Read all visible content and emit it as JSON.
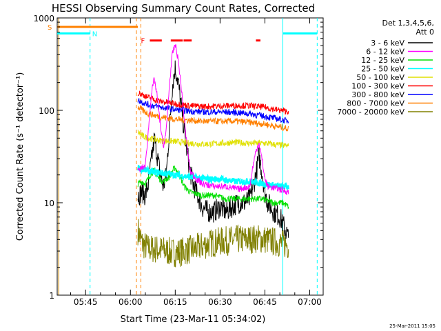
{
  "chart_data": {
    "type": "line",
    "title": "HESSI Observing Summary Count Rates, Corrected",
    "xlabel": "Start Time (23-Mar-11 05:34:02)",
    "ylabel": "Corrected Count Rate (s⁻¹ detector⁻¹)",
    "y_scale": "log",
    "ylim": [
      1,
      1000
    ],
    "xlim_minutes": [
      335.5,
      424.5
    ],
    "x_ticks": [
      {
        "label": "05:45",
        "t": 345
      },
      {
        "label": "06:00",
        "t": 360
      },
      {
        "label": "06:15",
        "t": 375
      },
      {
        "label": "06:30",
        "t": 390
      },
      {
        "label": "06:45",
        "t": 405
      },
      {
        "label": "07:00",
        "t": 420
      }
    ],
    "y_ticks": [
      {
        "label": "1",
        "v": 1
      },
      {
        "label": "10",
        "v": 10
      },
      {
        "label": "100",
        "v": 100
      },
      {
        "label": "1000",
        "v": 1000
      }
    ],
    "legend": {
      "header": [
        "Det 1,3,4,5,6,",
        "Att 0"
      ],
      "position": "right"
    },
    "series": [
      {
        "name": "3 - 6 keV",
        "color": "#000000",
        "points": [
          [
            362.5,
            12
          ],
          [
            364,
            13
          ],
          [
            365,
            12
          ],
          [
            366,
            16
          ],
          [
            367,
            28
          ],
          [
            368,
            50
          ],
          [
            369,
            32
          ],
          [
            370,
            20
          ],
          [
            371,
            15
          ],
          [
            372,
            20
          ],
          [
            373,
            60
          ],
          [
            374,
            180
          ],
          [
            375,
            290
          ],
          [
            376,
            200
          ],
          [
            377,
            110
          ],
          [
            378,
            60
          ],
          [
            379,
            35
          ],
          [
            380,
            22
          ],
          [
            381,
            16
          ],
          [
            382,
            13
          ],
          [
            383,
            11
          ],
          [
            384,
            9
          ],
          [
            386,
            8
          ],
          [
            388,
            8
          ],
          [
            390,
            9
          ],
          [
            392,
            8
          ],
          [
            394,
            9
          ],
          [
            396,
            10
          ],
          [
            398,
            10
          ],
          [
            400,
            11
          ],
          [
            402,
            20
          ],
          [
            403,
            32
          ],
          [
            404,
            22
          ],
          [
            405,
            13
          ],
          [
            406,
            10
          ],
          [
            407,
            9
          ],
          [
            408,
            8
          ],
          [
            410,
            7
          ],
          [
            412,
            5
          ],
          [
            413,
            4
          ]
        ]
      },
      {
        "name": "6 - 12 keV",
        "color": "#ff00ff",
        "points": [
          [
            362.5,
            22
          ],
          [
            364,
            24
          ],
          [
            365,
            25
          ],
          [
            366,
            60
          ],
          [
            367,
            150
          ],
          [
            368,
            220
          ],
          [
            369,
            140
          ],
          [
            370,
            70
          ],
          [
            371,
            40
          ],
          [
            372,
            60
          ],
          [
            373,
            180
          ],
          [
            374,
            400
          ],
          [
            375,
            520
          ],
          [
            376,
            350
          ],
          [
            377,
            180
          ],
          [
            378,
            80
          ],
          [
            379,
            40
          ],
          [
            380,
            22
          ],
          [
            382,
            18
          ],
          [
            384,
            16
          ],
          [
            388,
            15
          ],
          [
            392,
            15
          ],
          [
            396,
            14
          ],
          [
            400,
            15
          ],
          [
            401,
            25
          ],
          [
            402,
            36
          ],
          [
            403,
            45
          ],
          [
            404,
            30
          ],
          [
            405,
            18
          ],
          [
            406,
            15
          ],
          [
            410,
            14
          ],
          [
            413,
            13
          ]
        ]
      },
      {
        "name": "12 - 25 keV",
        "color": "#00e000",
        "points": [
          [
            362.5,
            16
          ],
          [
            364,
            17
          ],
          [
            365,
            16
          ],
          [
            367,
            21
          ],
          [
            368,
            22
          ],
          [
            369,
            19
          ],
          [
            371,
            17
          ],
          [
            373,
            19
          ],
          [
            374,
            22
          ],
          [
            375,
            24
          ],
          [
            376,
            21
          ],
          [
            378,
            15
          ],
          [
            380,
            13
          ],
          [
            384,
            12
          ],
          [
            388,
            12
          ],
          [
            392,
            11
          ],
          [
            396,
            11
          ],
          [
            400,
            11
          ],
          [
            404,
            11
          ],
          [
            408,
            10
          ],
          [
            411,
            10
          ],
          [
            413,
            9
          ]
        ]
      },
      {
        "name": "25 - 50 keV",
        "color": "#00ffff",
        "points": [
          [
            362.5,
            24
          ],
          [
            364,
            23
          ],
          [
            366,
            22
          ],
          [
            370,
            21
          ],
          [
            375,
            20
          ],
          [
            380,
            19
          ],
          [
            385,
            18
          ],
          [
            390,
            18
          ],
          [
            395,
            17
          ],
          [
            400,
            17
          ],
          [
            405,
            16
          ],
          [
            410,
            15
          ],
          [
            413,
            15
          ]
        ]
      },
      {
        "name": "50 - 100 keV",
        "color": "#e0e000",
        "points": [
          [
            362.5,
            58
          ],
          [
            364,
            53
          ],
          [
            366,
            50
          ],
          [
            370,
            47
          ],
          [
            375,
            46
          ],
          [
            380,
            44
          ],
          [
            385,
            43
          ],
          [
            390,
            44
          ],
          [
            395,
            45
          ],
          [
            400,
            44
          ],
          [
            405,
            44
          ],
          [
            410,
            42
          ],
          [
            413,
            41
          ]
        ]
      },
      {
        "name": "100 - 300 keV",
        "color": "#ff0000",
        "points": [
          [
            362.5,
            155
          ],
          [
            364,
            148
          ],
          [
            366,
            138
          ],
          [
            370,
            125
          ],
          [
            375,
            118
          ],
          [
            380,
            112
          ],
          [
            385,
            110
          ],
          [
            390,
            111
          ],
          [
            395,
            113
          ],
          [
            400,
            112
          ],
          [
            405,
            108
          ],
          [
            410,
            100
          ],
          [
            413,
            97
          ]
        ]
      },
      {
        "name": "300 - 800 keV",
        "color": "#0000ff",
        "points": [
          [
            362.5,
            130
          ],
          [
            364,
            122
          ],
          [
            366,
            115
          ],
          [
            370,
            108
          ],
          [
            375,
            102
          ],
          [
            380,
            98
          ],
          [
            385,
            96
          ],
          [
            390,
            96
          ],
          [
            395,
            95
          ],
          [
            400,
            92
          ],
          [
            405,
            86
          ],
          [
            410,
            80
          ],
          [
            413,
            76
          ]
        ]
      },
      {
        "name": "800 - 7000 keV",
        "color": "#ff8000",
        "points": [
          [
            362.5,
            108
          ],
          [
            364,
            100
          ],
          [
            366,
            92
          ],
          [
            370,
            85
          ],
          [
            375,
            80
          ],
          [
            380,
            78
          ],
          [
            385,
            76
          ],
          [
            390,
            76
          ],
          [
            395,
            76
          ],
          [
            400,
            74
          ],
          [
            405,
            71
          ],
          [
            410,
            66
          ],
          [
            413,
            63
          ]
        ]
      },
      {
        "name": "7000 - 20000 keV",
        "color": "#808000",
        "points": [
          [
            362.5,
            5
          ],
          [
            364,
            3.6
          ],
          [
            366,
            3.2
          ],
          [
            370,
            3.1
          ],
          [
            372,
            3.0
          ],
          [
            374,
            2.9
          ],
          [
            376,
            2.9
          ],
          [
            378,
            3.0
          ],
          [
            380,
            3.1
          ],
          [
            382,
            3.2
          ],
          [
            384,
            3.4
          ],
          [
            386,
            3.6
          ],
          [
            388,
            3.7
          ],
          [
            390,
            3.8
          ],
          [
            393,
            3.9
          ],
          [
            396,
            4.0
          ],
          [
            399,
            4.0
          ],
          [
            402,
            4.1
          ],
          [
            405,
            4.0
          ],
          [
            408,
            3.8
          ],
          [
            411,
            3.6
          ],
          [
            413,
            3.5
          ]
        ]
      }
    ],
    "flags": {
      "s_label": "S",
      "n_label": "N",
      "f_label": "F",
      "saa_color": "#ff8000",
      "night_color": "#00ffff",
      "flare_color": "#ff0000",
      "saa_intervals": [
        [
          335.5,
          362.5
        ]
      ],
      "night_intervals": [
        [
          335.5,
          346.5
        ],
        [
          411,
          422.5
        ]
      ],
      "flare_intervals": [
        [
          366.5,
          370.5
        ],
        [
          373.5,
          377.5
        ],
        [
          377.8,
          380.5
        ],
        [
          402,
          403.5
        ]
      ],
      "saa_level": 800,
      "night_level": 680,
      "flare_level": 570,
      "dashed_saa": [
        362,
        363.5
      ],
      "dashed_night": [
        346.5,
        422.5
      ],
      "solid_night": [
        411,
        336
      ]
    },
    "timestamp": "25-Mar-2011 15:05"
  }
}
